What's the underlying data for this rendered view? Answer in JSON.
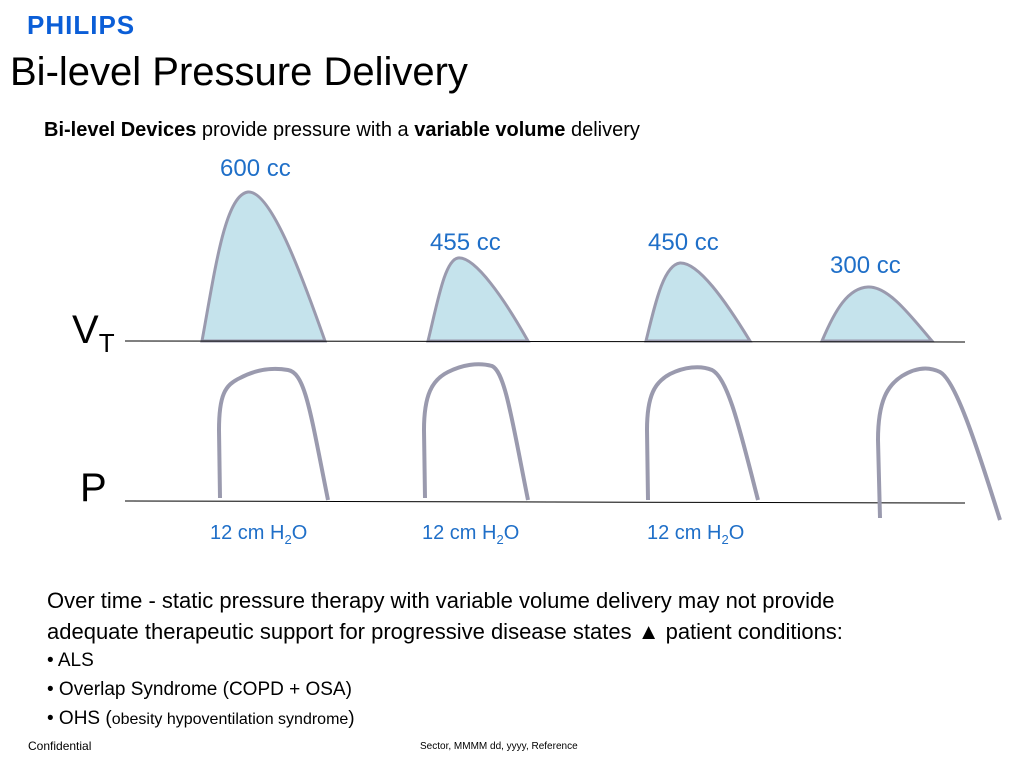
{
  "header": {
    "logo": "PHILIPS",
    "title": "Bi-level Pressure Delivery"
  },
  "subtitle": {
    "bold_1": "Bi-level Devices",
    "text_1": " provide pressure with a ",
    "bold_2": "variable volume",
    "text_2": " delivery"
  },
  "diagram": {
    "volume_axis": {
      "main": "V",
      "sub": "T"
    },
    "pressure_axis": "P",
    "volume_labels": [
      "600 cc",
      "455 cc",
      "450 cc",
      "300 cc"
    ],
    "pressure_labels": [
      {
        "main": "12 cm H",
        "sub": "2",
        "end": "O"
      },
      {
        "main": "12 cm H",
        "sub": "2",
        "end": "O"
      },
      {
        "main": "12 cm H",
        "sub": "2",
        "end": "O"
      }
    ]
  },
  "body": {
    "lines": [
      "Over time - static pressure therapy with variable volume delivery may not provide",
      "adequate therapeutic support for progressive disease states ▲ patient conditions:"
    ],
    "bullets": [
      {
        "text": "• ALS"
      },
      {
        "text": "• Overlap Syndrome (COPD + OSA)"
      },
      {
        "text": "• OHS (",
        "small": "obesity hypoventilation syndrome",
        "end": ")"
      }
    ]
  },
  "footer": {
    "left": "Confidential",
    "center": "Sector, MMMM dd, yyyy, Reference"
  }
}
